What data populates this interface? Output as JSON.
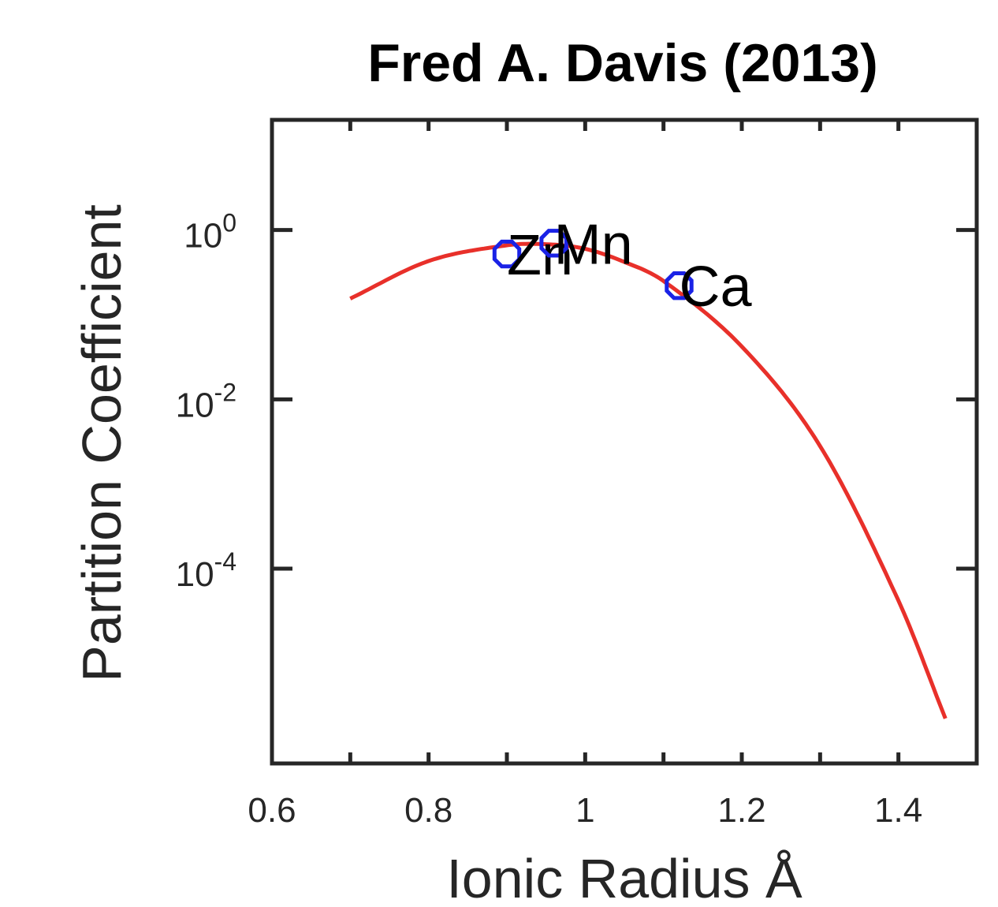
{
  "chart_data": {
    "type": "scatter",
    "title": "Fred A. Davis (2013)",
    "xlabel": "Ionic Radius Å",
    "ylabel": "Partition Coefficient",
    "xlim": [
      0.6,
      1.5
    ],
    "ylim": [
      5e-07,
      20
    ],
    "yscale": "log",
    "grid": false,
    "xticks": [
      {
        "value": 0.6,
        "label": "0.6"
      },
      {
        "value": 0.8,
        "label": "0.8"
      },
      {
        "value": 1.0,
        "label": "1"
      },
      {
        "value": 1.2,
        "label": "1.2"
      },
      {
        "value": 1.4,
        "label": "1.4"
      }
    ],
    "yticks": [
      {
        "value": 1,
        "base": "10",
        "exp": "0"
      },
      {
        "value": 0.01,
        "base": "10",
        "exp": "-2"
      },
      {
        "value": 0.0001,
        "base": "10",
        "exp": "-4"
      }
    ],
    "points": [
      {
        "label": "Zn",
        "x": 0.9,
        "y": 0.52
      },
      {
        "label": "Mn",
        "x": 0.96,
        "y": 0.7
      },
      {
        "label": "Ca",
        "x": 1.12,
        "y": 0.22
      }
    ],
    "fit_curve": {
      "color": "#e8302a",
      "x": [
        0.7,
        0.8,
        0.9,
        0.95,
        1.0,
        1.05,
        1.1,
        1.2,
        1.3,
        1.4,
        1.46
      ],
      "y": [
        0.155,
        0.43,
        0.66,
        0.68,
        0.6,
        0.42,
        0.25,
        0.042,
        0.0028,
        4.2e-05,
        1.7e-06
      ]
    },
    "colors": {
      "points": "#1a22e6",
      "fit_curve": "#e8302a",
      "axes": "#262626"
    }
  }
}
